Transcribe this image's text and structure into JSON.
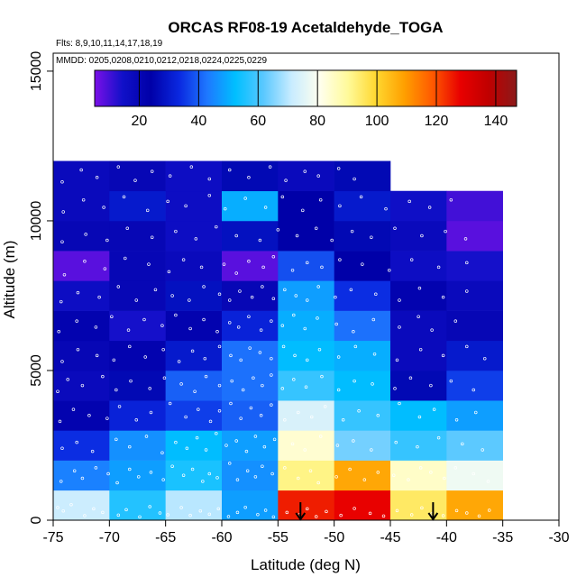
{
  "chart_data": {
    "type": "heatmap",
    "title": "ORCAS RF08-19 Acetaldehyde_TOGA",
    "annotations": {
      "flights": "Flts: 8,9,10,11,14,17,18,19",
      "dates": "MMDD: 0205,0208,0210,0212,0218,0224,0225,0229"
    },
    "xlabel": "Latitude (deg N)",
    "ylabel": "Altitude (m)",
    "xlim": [
      -75,
      -30
    ],
    "ylim": [
      0,
      15600
    ],
    "x_ticks": [
      -75,
      -70,
      -65,
      -60,
      -55,
      -50,
      -45,
      -40,
      -35,
      -30
    ],
    "x_tick_labels": [
      "-75",
      "-70",
      "-65",
      "-60",
      "-55",
      "-50",
      "-45",
      "-40",
      "-35",
      "-30"
    ],
    "y_ticks": [
      0,
      5000,
      10000,
      15000
    ],
    "y_tick_labels": [
      "0",
      "5000",
      "10000",
      "15000"
    ],
    "colorbar": {
      "range": [
        5,
        147
      ],
      "ticks": [
        20,
        40,
        60,
        80,
        100,
        120,
        140
      ],
      "tick_labels": [
        "20",
        "40",
        "60",
        "80",
        "100",
        "120",
        "140"
      ],
      "stops": [
        "#7b10e8",
        "#1010c8",
        "#0000a8",
        "#0a28e0",
        "#1e78ff",
        "#00bfff",
        "#5ac8ff",
        "#c8ecff",
        "#ffffee",
        "#fffa9a",
        "#ffd830",
        "#ffa000",
        "#ff5a00",
        "#e80000",
        "#c00000",
        "#8b1a1a"
      ]
    },
    "lat_bins": [
      -75,
      -70,
      -65,
      -60,
      -55,
      -50,
      -45,
      -40,
      -35
    ],
    "alt_bins": [
      0,
      1000,
      2000,
      3000,
      4000,
      5000,
      6000,
      7000,
      8000,
      9000,
      10000,
      11000,
      12000
    ],
    "values": [
      [
        72,
        56,
        70,
        48,
        125,
        128,
        95,
        108
      ],
      [
        44,
        48,
        55,
        46,
        92,
        108,
        85,
        78
      ],
      [
        34,
        46,
        52,
        48,
        84,
        64,
        58,
        62
      ],
      [
        22,
        32,
        36,
        40,
        74,
        58,
        52,
        48
      ],
      [
        18,
        26,
        40,
        42,
        58,
        52,
        26,
        36
      ],
      [
        20,
        22,
        30,
        42,
        52,
        50,
        18,
        30
      ],
      [
        22,
        14,
        22,
        32,
        50,
        42,
        18,
        20
      ],
      [
        16,
        20,
        28,
        20,
        48,
        34,
        22,
        18
      ],
      [
        8,
        20,
        18,
        8,
        38,
        24,
        16,
        14
      ],
      [
        20,
        20,
        16,
        28,
        24,
        26,
        18,
        8
      ],
      [
        18,
        30,
        16,
        50,
        24,
        30,
        15,
        10
      ],
      [
        18,
        20,
        16,
        26,
        18,
        26,
        null,
        null
      ]
    ],
    "arrows": [
      {
        "lat": -53,
        "alt_top": 600,
        "alt_bottom": 0
      },
      {
        "lat": -41.2,
        "alt_top": 600,
        "alt_bottom": 0
      }
    ],
    "samples": [
      [
        -74.6,
        420
      ],
      [
        -74.1,
        310
      ],
      [
        -73.4,
        520
      ],
      [
        -72.2,
        150
      ],
      [
        -71.4,
        380
      ],
      [
        -70.6,
        260
      ],
      [
        -69.2,
        170
      ],
      [
        -68.5,
        350
      ],
      [
        -67.3,
        110
      ],
      [
        -66.4,
        450
      ],
      [
        -65.5,
        240
      ],
      [
        -64.8,
        180
      ],
      [
        -63.6,
        420
      ],
      [
        -62.8,
        160
      ],
      [
        -61.9,
        310
      ],
      [
        -61.1,
        200
      ],
      [
        -60.3,
        380
      ],
      [
        -59.4,
        120
      ],
      [
        -58.6,
        260
      ],
      [
        -57.9,
        430
      ],
      [
        -56.8,
        190
      ],
      [
        -56.1,
        330
      ],
      [
        -55.4,
        110
      ],
      [
        -54.2,
        260
      ],
      [
        -53.1,
        180
      ],
      [
        -52.4,
        380
      ],
      [
        -51.6,
        120
      ],
      [
        -50.7,
        290
      ],
      [
        -49.4,
        160
      ],
      [
        -48.2,
        390
      ],
      [
        -46.8,
        230
      ],
      [
        -45.6,
        140
      ],
      [
        -44.4,
        320
      ],
      [
        -43.1,
        180
      ],
      [
        -42.2,
        410
      ],
      [
        -41.3,
        210
      ],
      [
        -40.3,
        150
      ],
      [
        -39.1,
        320
      ],
      [
        -38.2,
        240
      ],
      [
        -37.1,
        140
      ],
      [
        -36.2,
        330
      ],
      [
        -74.3,
        1300
      ],
      [
        -73.1,
        1650
      ],
      [
        -72.4,
        1400
      ],
      [
        -71.2,
        1750
      ],
      [
        -70.1,
        1550
      ],
      [
        -69.3,
        1250
      ],
      [
        -68.2,
        1700
      ],
      [
        -67.4,
        1450
      ],
      [
        -66.3,
        1600
      ],
      [
        -65.2,
        1350
      ],
      [
        -64.4,
        1800
      ],
      [
        -63.4,
        1500
      ],
      [
        -62.6,
        1700
      ],
      [
        -61.7,
        1300
      ],
      [
        -61.1,
        1550
      ],
      [
        -60.4,
        1420
      ],
      [
        -59.3,
        1900
      ],
      [
        -58.6,
        1350
      ],
      [
        -57.7,
        1650
      ],
      [
        -57.0,
        1450
      ],
      [
        -56.4,
        1800
      ],
      [
        -55.5,
        1550
      ],
      [
        -54.4,
        1750
      ],
      [
        -53.2,
        1400
      ],
      [
        -52.1,
        1650
      ],
      [
        -51.4,
        1250
      ],
      [
        -49.8,
        1450
      ],
      [
        -48.6,
        1700
      ],
      [
        -47.3,
        1350
      ],
      [
        -46.1,
        1600
      ],
      [
        -44.7,
        1500
      ],
      [
        -43.4,
        1350
      ],
      [
        -42.3,
        1750
      ],
      [
        -41.4,
        1600
      ],
      [
        -40.2,
        1400
      ],
      [
        -39.2,
        1750
      ],
      [
        -37.6,
        1550
      ],
      [
        -36.3,
        1300
      ],
      [
        -74.2,
        2400
      ],
      [
        -72.9,
        2600
      ],
      [
        -71.5,
        2300
      ],
      [
        -69.4,
        2700
      ],
      [
        -68.2,
        2450
      ],
      [
        -66.7,
        2800
      ],
      [
        -65.3,
        2250
      ],
      [
        -64.1,
        2600
      ],
      [
        -63.1,
        2400
      ],
      [
        -62.2,
        2750
      ],
      [
        -61.4,
        2350
      ],
      [
        -60.5,
        2900
      ],
      [
        -59.6,
        2500
      ],
      [
        -58.7,
        2650
      ],
      [
        -57.8,
        2300
      ],
      [
        -57.0,
        2800
      ],
      [
        -56.2,
        2450
      ],
      [
        -55.3,
        2700
      ],
      [
        -53.7,
        2550
      ],
      [
        -52.6,
        2350
      ],
      [
        -51.2,
        2800
      ],
      [
        -49.7,
        2500
      ],
      [
        -48.3,
        2650
      ],
      [
        -46.7,
        2350
      ],
      [
        -44.5,
        2600
      ],
      [
        -42.6,
        2450
      ],
      [
        -40.7,
        2750
      ],
      [
        -38.6,
        2550
      ],
      [
        -36.8,
        2350
      ],
      [
        -74.4,
        3300
      ],
      [
        -73.2,
        3700
      ],
      [
        -71.8,
        3500
      ],
      [
        -70.2,
        3400
      ],
      [
        -69.1,
        3800
      ],
      [
        -67.6,
        3350
      ],
      [
        -66.3,
        3600
      ],
      [
        -64.6,
        3900
      ],
      [
        -63.2,
        3450
      ],
      [
        -62.1,
        3700
      ],
      [
        -61.0,
        3300
      ],
      [
        -60.2,
        3650
      ],
      [
        -59.2,
        3900
      ],
      [
        -58.3,
        3400
      ],
      [
        -57.4,
        3750
      ],
      [
        -56.5,
        3500
      ],
      [
        -55.6,
        3850
      ],
      [
        -54.4,
        3350
      ],
      [
        -53.2,
        3600
      ],
      [
        -52.0,
        3450
      ],
      [
        -50.8,
        3800
      ],
      [
        -49.2,
        3350
      ],
      [
        -47.8,
        3650
      ],
      [
        -46.1,
        3500
      ],
      [
        -44.2,
        3900
      ],
      [
        -42.4,
        3450
      ],
      [
        -41.1,
        3700
      ],
      [
        -39.1,
        3350
      ],
      [
        -37.4,
        3600
      ],
      [
        -74.6,
        4300
      ],
      [
        -73.7,
        4700
      ],
      [
        -72.4,
        4500
      ],
      [
        -70.6,
        4800
      ],
      [
        -69.4,
        4350
      ],
      [
        -68.1,
        4650
      ],
      [
        -66.4,
        4400
      ],
      [
        -65.1,
        4750
      ],
      [
        -63.6,
        4550
      ],
      [
        -62.4,
        4300
      ],
      [
        -61.4,
        4800
      ],
      [
        -60.2,
        4500
      ],
      [
        -59.1,
        4650
      ],
      [
        -58.1,
        4350
      ],
      [
        -57.2,
        4750
      ],
      [
        -56.4,
        4500
      ],
      [
        -55.6,
        4850
      ],
      [
        -54.6,
        4400
      ],
      [
        -53.6,
        4700
      ],
      [
        -52.5,
        4450
      ],
      [
        -51.1,
        4800
      ],
      [
        -49.6,
        4350
      ],
      [
        -48.2,
        4650
      ],
      [
        -46.6,
        4550
      ],
      [
        -44.6,
        4400
      ],
      [
        -43.2,
        4750
      ],
      [
        -41.4,
        4500
      ],
      [
        -39.6,
        4650
      ],
      [
        -37.6,
        4350
      ],
      [
        -74.2,
        5300
      ],
      [
        -72.8,
        5700
      ],
      [
        -71.1,
        5500
      ],
      [
        -69.6,
        5350
      ],
      [
        -68.2,
        5800
      ],
      [
        -66.8,
        5450
      ],
      [
        -65.2,
        5700
      ],
      [
        -63.8,
        5300
      ],
      [
        -62.6,
        5650
      ],
      [
        -61.5,
        5400
      ],
      [
        -60.2,
        5800
      ],
      [
        -59.2,
        5500
      ],
      [
        -58.3,
        5350
      ],
      [
        -57.5,
        5750
      ],
      [
        -56.6,
        5600
      ],
      [
        -55.6,
        5400
      ],
      [
        -54.5,
        5800
      ],
      [
        -53.5,
        5500
      ],
      [
        -52.4,
        5350
      ],
      [
        -51.3,
        5700
      ],
      [
        -49.6,
        5450
      ],
      [
        -48.1,
        5800
      ],
      [
        -46.4,
        5550
      ],
      [
        -44.4,
        5350
      ],
      [
        -42.3,
        5700
      ],
      [
        -40.3,
        5500
      ],
      [
        -38.2,
        5800
      ],
      [
        -36.6,
        5400
      ],
      [
        -74.5,
        6300
      ],
      [
        -72.9,
        6650
      ],
      [
        -71.2,
        6450
      ],
      [
        -69.8,
        6800
      ],
      [
        -68.3,
        6350
      ],
      [
        -66.9,
        6700
      ],
      [
        -65.3,
        6500
      ],
      [
        -64.1,
        6850
      ],
      [
        -62.8,
        6400
      ],
      [
        -61.6,
        6700
      ],
      [
        -60.4,
        6300
      ],
      [
        -59.3,
        6600
      ],
      [
        -58.5,
        6450
      ],
      [
        -57.6,
        6800
      ],
      [
        -56.5,
        6350
      ],
      [
        -55.6,
        6650
      ],
      [
        -54.6,
        6500
      ],
      [
        -53.6,
        6850
      ],
      [
        -52.6,
        6400
      ],
      [
        -51.5,
        6750
      ],
      [
        -49.8,
        6550
      ],
      [
        -48.3,
        6300
      ],
      [
        -46.5,
        6700
      ],
      [
        -44.2,
        6450
      ],
      [
        -42.5,
        6800
      ],
      [
        -41.3,
        6350
      ],
      [
        -39.2,
        6650
      ],
      [
        -74.3,
        7300
      ],
      [
        -72.8,
        7600
      ],
      [
        -70.9,
        7450
      ],
      [
        -69.2,
        7800
      ],
      [
        -67.6,
        7350
      ],
      [
        -65.9,
        7700
      ],
      [
        -64.4,
        7500
      ],
      [
        -62.9,
        7350
      ],
      [
        -61.6,
        7800
      ],
      [
        -60.2,
        7550
      ],
      [
        -59.3,
        7350
      ],
      [
        -58.4,
        7650
      ],
      [
        -57.3,
        7450
      ],
      [
        -56.4,
        7800
      ],
      [
        -55.4,
        7400
      ],
      [
        -54.4,
        7700
      ],
      [
        -53.4,
        7500
      ],
      [
        -52.4,
        7350
      ],
      [
        -51.4,
        7800
      ],
      [
        -49.9,
        7450
      ],
      [
        -48.5,
        7700
      ],
      [
        -46.3,
        7550
      ],
      [
        -44.2,
        7350
      ],
      [
        -42.4,
        7750
      ],
      [
        -40.3,
        7450
      ],
      [
        -38.2,
        7650
      ],
      [
        -74.0,
        8200
      ],
      [
        -72.2,
        8650
      ],
      [
        -70.4,
        8400
      ],
      [
        -68.6,
        8750
      ],
      [
        -66.5,
        8550
      ],
      [
        -64.7,
        8300
      ],
      [
        -63.4,
        8700
      ],
      [
        -61.8,
        8450
      ],
      [
        -59.8,
        8550
      ],
      [
        -58.7,
        8250
      ],
      [
        -57.6,
        8650
      ],
      [
        -56.3,
        8450
      ],
      [
        -55.4,
        8800
      ],
      [
        -53.7,
        8350
      ],
      [
        -52.4,
        8600
      ],
      [
        -51.1,
        8450
      ],
      [
        -49.5,
        8700
      ],
      [
        -47.5,
        8550
      ],
      [
        -45.1,
        8350
      ],
      [
        -43.1,
        8700
      ],
      [
        -40.7,
        8450
      ],
      [
        -38.2,
        8600
      ],
      [
        -74.2,
        9300
      ],
      [
        -72.1,
        9550
      ],
      [
        -70.2,
        9350
      ],
      [
        -68.4,
        9750
      ],
      [
        -66.2,
        9450
      ],
      [
        -64.1,
        9650
      ],
      [
        -62.3,
        9400
      ],
      [
        -60.5,
        9800
      ],
      [
        -58.7,
        9500
      ],
      [
        -56.6,
        9350
      ],
      [
        -55.0,
        9700
      ],
      [
        -53.3,
        9500
      ],
      [
        -51.6,
        9750
      ],
      [
        -50.2,
        9350
      ],
      [
        -48.4,
        9650
      ],
      [
        -46.7,
        9450
      ],
      [
        -44.6,
        9750
      ],
      [
        -42.2,
        9500
      ],
      [
        -40.1,
        9650
      ],
      [
        -38.3,
        9400
      ],
      [
        -74.1,
        10300
      ],
      [
        -72.3,
        10700
      ],
      [
        -70.5,
        10450
      ],
      [
        -68.7,
        10800
      ],
      [
        -66.6,
        10350
      ],
      [
        -64.8,
        10650
      ],
      [
        -63.2,
        10500
      ],
      [
        -61.1,
        10850
      ],
      [
        -59.7,
        10400
      ],
      [
        -57.9,
        10750
      ],
      [
        -56.1,
        10450
      ],
      [
        -54.6,
        10800
      ],
      [
        -52.8,
        10350
      ],
      [
        -51.2,
        10700
      ],
      [
        -49.5,
        10500
      ],
      [
        -47.6,
        10800
      ],
      [
        -45.4,
        10400
      ],
      [
        -43.3,
        10650
      ],
      [
        -41.5,
        10450
      ],
      [
        -39.6,
        10700
      ],
      [
        -74.2,
        11300
      ],
      [
        -72.5,
        11700
      ],
      [
        -71.1,
        11450
      ],
      [
        -69.2,
        11800
      ],
      [
        -67.7,
        11350
      ],
      [
        -66.2,
        11650
      ],
      [
        -64.6,
        11500
      ],
      [
        -62.7,
        11800
      ],
      [
        -61.1,
        11400
      ],
      [
        -59.3,
        11700
      ],
      [
        -57.6,
        11450
      ],
      [
        -55.7,
        11800
      ],
      [
        -54.3,
        11350
      ],
      [
        -52.6,
        11650
      ],
      [
        -51.4,
        11500
      ],
      [
        -49.6,
        11750
      ],
      [
        -48.2,
        11400
      ]
    ]
  }
}
